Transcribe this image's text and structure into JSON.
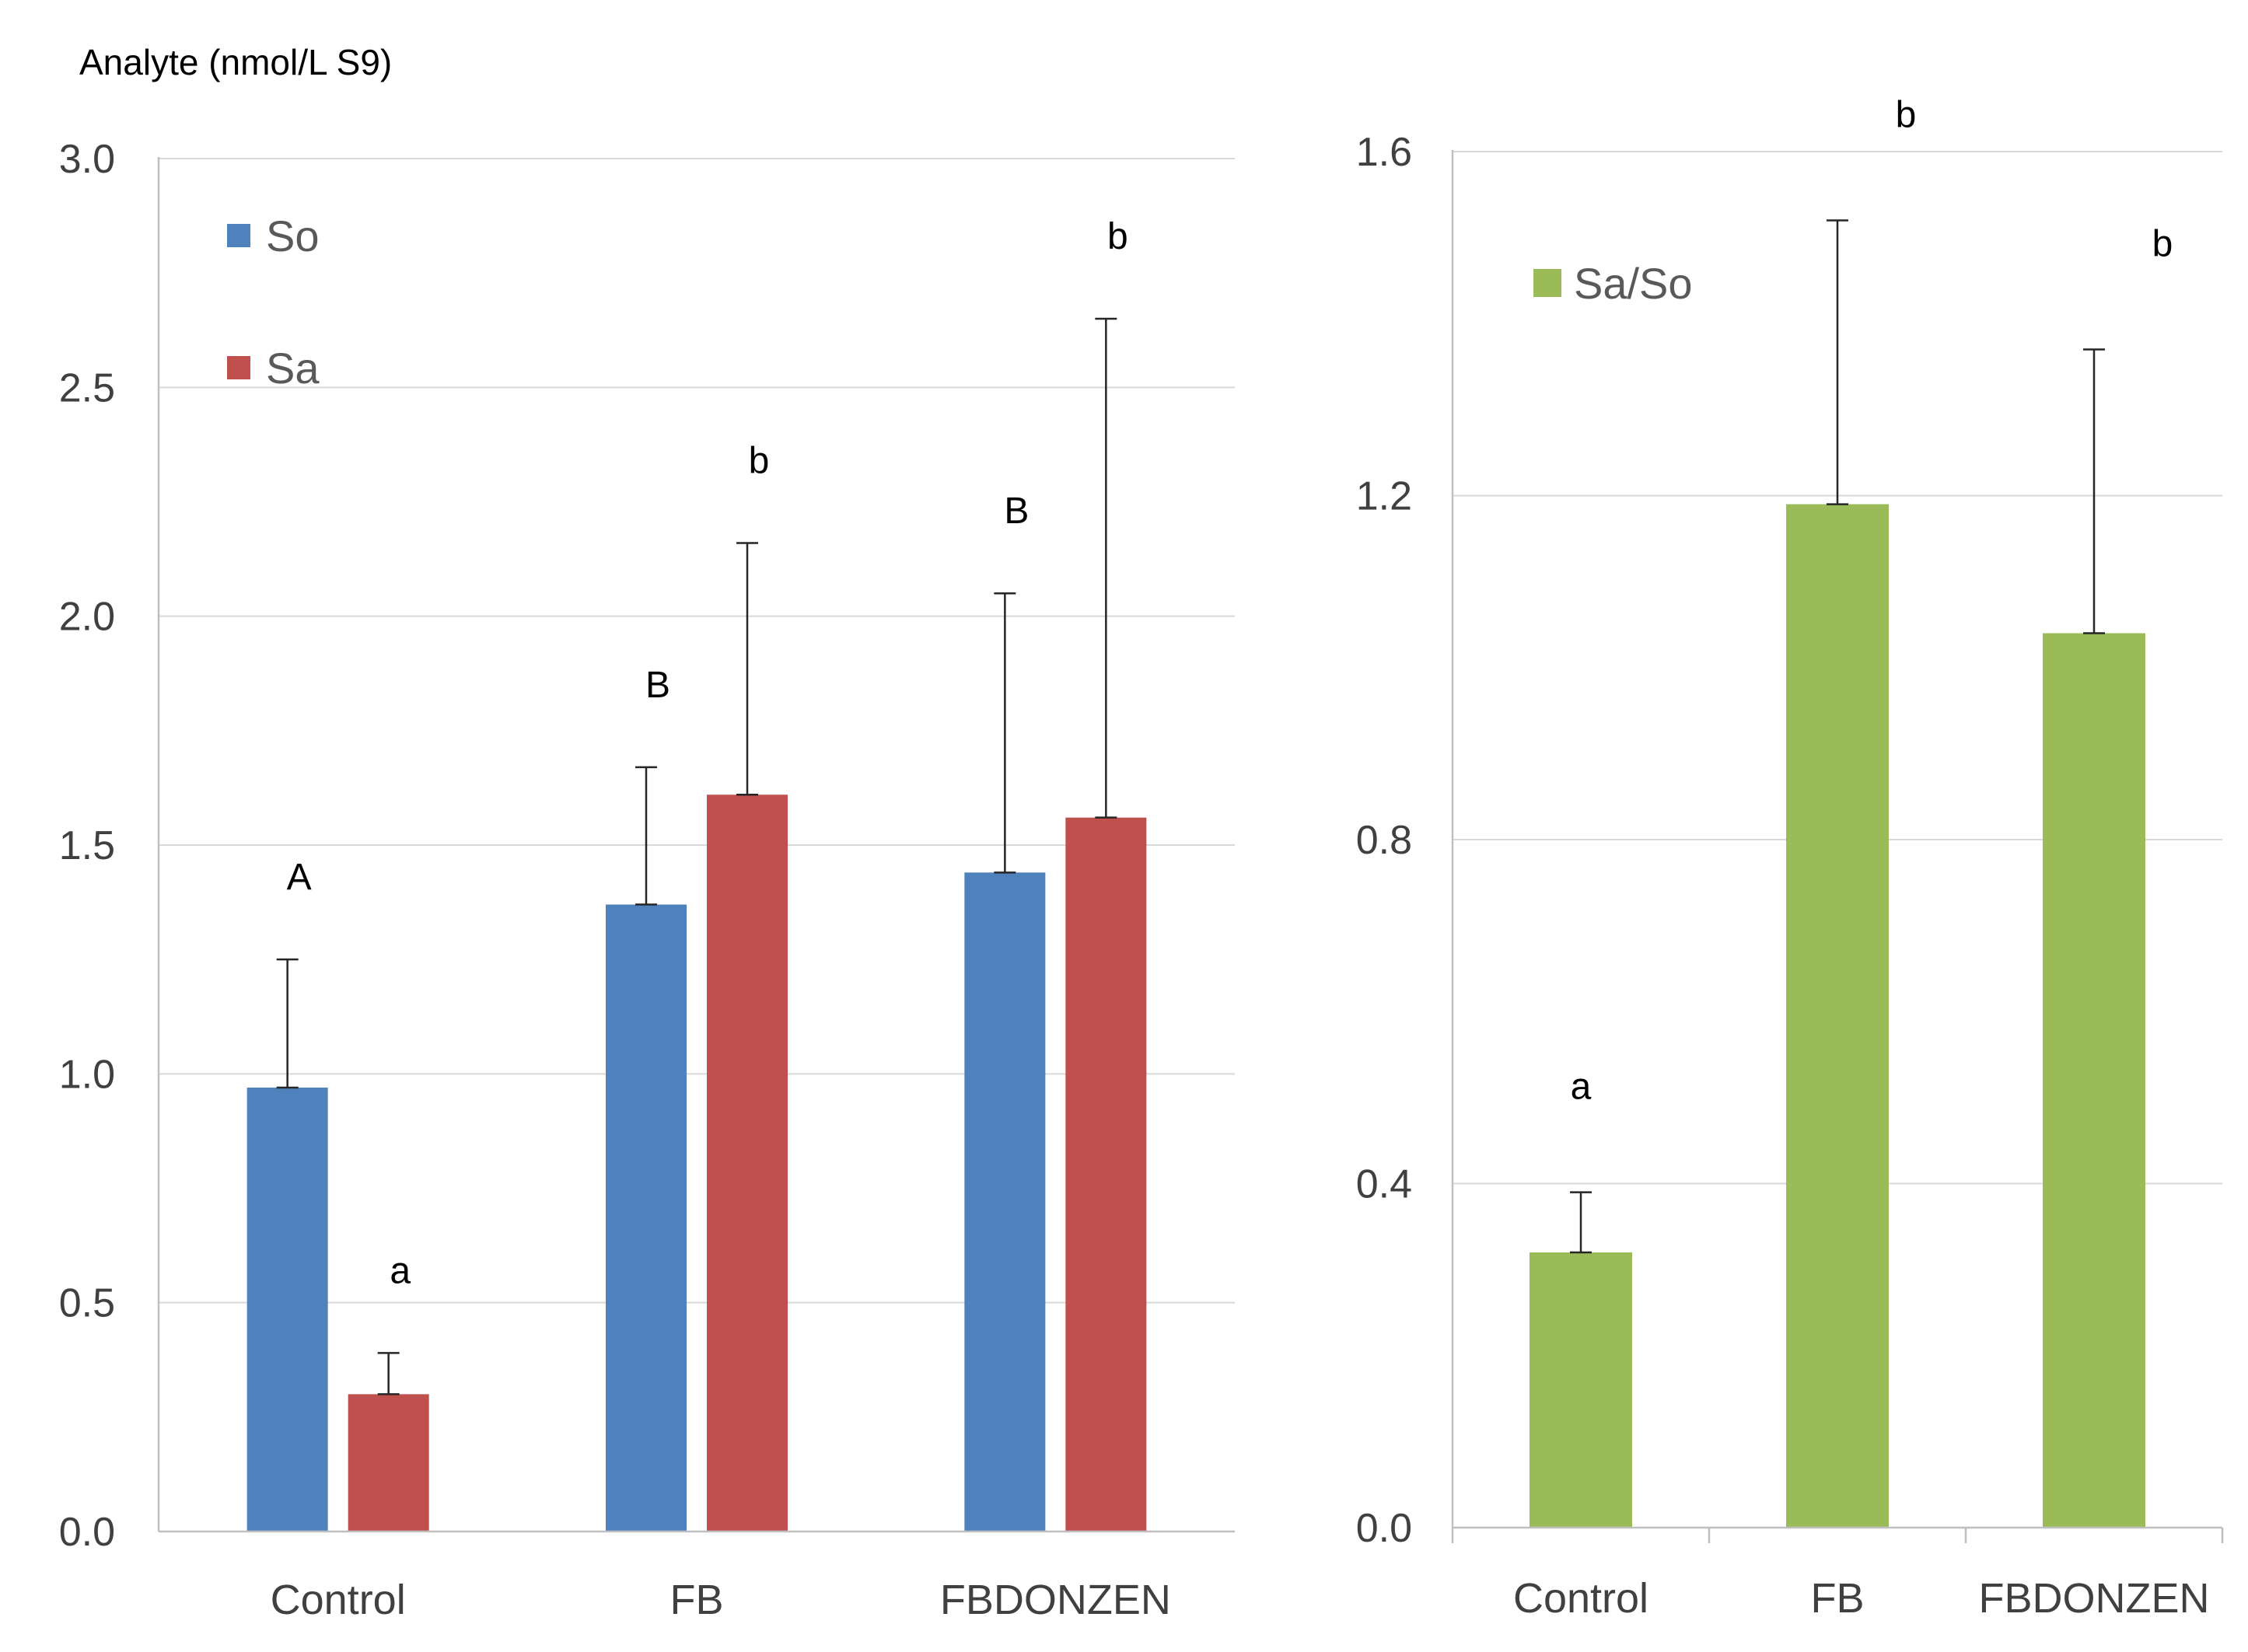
{
  "chart_data": [
    {
      "type": "bar",
      "ylabel": "Analyte (nmol/L S9)",
      "xlabel": "",
      "categories": [
        "Control",
        "FB",
        "FBDONZEN"
      ],
      "ylim": [
        0,
        3.0
      ],
      "yticks": [
        "0.0",
        "0.5",
        "1.0",
        "1.5",
        "2.0",
        "2.5",
        "3.0"
      ],
      "grid": true,
      "legend_position": "top-left",
      "series": [
        {
          "name": "So",
          "color": "#4f81bd",
          "values": [
            0.97,
            1.37,
            1.44
          ],
          "errors": [
            0.28,
            0.3,
            0.61
          ],
          "letters": [
            "A",
            "B",
            "B"
          ]
        },
        {
          "name": "Sa",
          "color": "#c0504d",
          "values": [
            0.3,
            1.61,
            1.56
          ],
          "errors": [
            0.09,
            0.55,
            1.09
          ],
          "letters": [
            "a",
            "b",
            "b"
          ]
        }
      ]
    },
    {
      "type": "bar",
      "ylabel": "",
      "xlabel": "",
      "categories": [
        "Control",
        "FB",
        "FBDONZEN"
      ],
      "ylim": [
        0,
        1.6
      ],
      "yticks": [
        "0.0",
        "0.4",
        "0.8",
        "1.2",
        "1.6"
      ],
      "grid": true,
      "legend_position": "top-left",
      "series": [
        {
          "name": "Sa/So",
          "color": "#9bbb59",
          "values": [
            0.32,
            1.19,
            1.04
          ],
          "errors": [
            0.07,
            0.33,
            0.33
          ],
          "letters": [
            "a",
            "b",
            "b"
          ]
        }
      ]
    }
  ]
}
